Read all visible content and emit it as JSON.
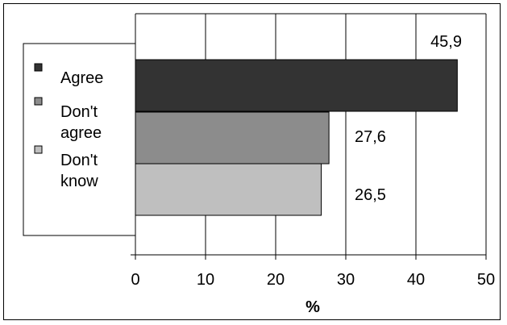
{
  "chart_data": {
    "type": "bar",
    "orientation": "horizontal",
    "categories": [
      "Agree",
      "Don't agree",
      "Don't know"
    ],
    "values": [
      45.9,
      27.6,
      26.5
    ],
    "value_labels": [
      "45,9",
      "27,6",
      "26,5"
    ],
    "colors": [
      "#333333",
      "#8c8c8c",
      "#bfbfbf"
    ],
    "xlabel": "%",
    "xlim": [
      0,
      50
    ],
    "xticks": [
      0,
      10,
      20,
      30,
      40,
      50
    ],
    "grid": "vertical",
    "legend": {
      "placement": "left",
      "entries": [
        {
          "lines": [
            "Agree"
          ],
          "color": "#333333"
        },
        {
          "lines": [
            "Don't",
            "agree"
          ],
          "color": "#8c8c8c"
        },
        {
          "lines": [
            "Don't",
            "know"
          ],
          "color": "#bfbfbf"
        }
      ]
    }
  }
}
